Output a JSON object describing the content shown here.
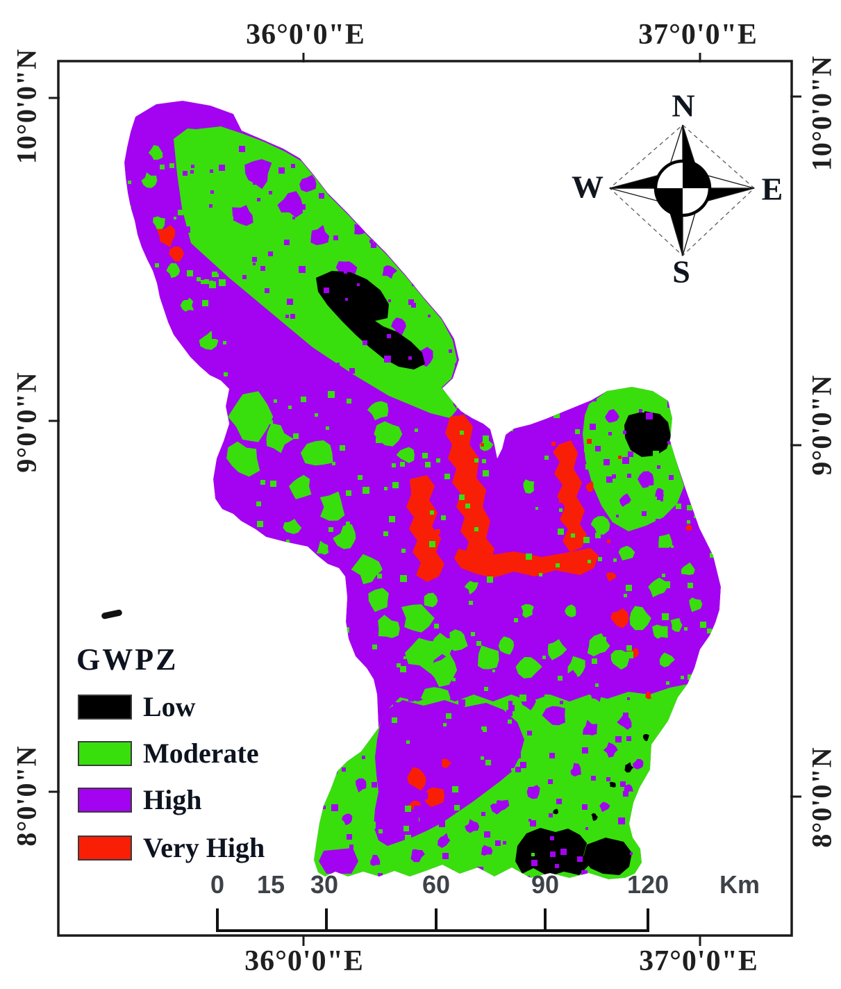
{
  "axis": {
    "top": [
      "36°0'0\"E",
      "37°0'0\"E"
    ],
    "bottom": [
      "36°0'0\"E",
      "37°0'0\"E"
    ],
    "left": [
      "10°0'0\"N",
      "9°0'0\"N",
      "8°0'0\"N"
    ],
    "right": [
      "10°0'0\"N",
      "9°0'0\"N",
      "8°0'0\"N"
    ]
  },
  "compass": {
    "north": "N",
    "south": "S",
    "east": "E",
    "west": "W"
  },
  "legend": {
    "title": "GWPZ",
    "items": [
      {
        "label": "Low",
        "color": "#000000"
      },
      {
        "label": "Moderate",
        "color": "#38DF0D"
      },
      {
        "label": "High",
        "color": "#A303F1"
      },
      {
        "label": "Very High",
        "color": "#F91F06"
      }
    ]
  },
  "scalebar": {
    "labels": [
      "0",
      "15",
      "30",
      "60",
      "90",
      "120"
    ],
    "unit": "Km"
  },
  "map_colors": {
    "low": "#000000",
    "moderate": "#38DF0D",
    "high": "#A303F1",
    "very_high": "#F91F06",
    "background": "#ffffff",
    "frame": "#1b1b1b"
  }
}
